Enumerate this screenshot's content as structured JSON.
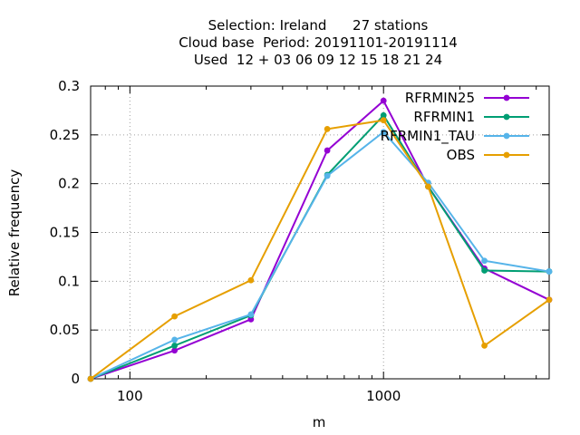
{
  "chart_data": {
    "type": "line",
    "title_lines": [
      "Selection: Ireland      27 stations",
      "Cloud base  Period: 20191101-20191114",
      "Used  12 + 03 06 09 12 15 18 21 24"
    ],
    "xlabel": "m",
    "ylabel": "Relative frequency",
    "xscale": "log",
    "xlim": [
      70,
      4500
    ],
    "ylim": [
      0,
      0.3
    ],
    "xticks": [
      100,
      1000
    ],
    "xtick_labels": [
      "100",
      "1000"
    ],
    "yticks": [
      0,
      0.05,
      0.1,
      0.15,
      0.2,
      0.25,
      0.3
    ],
    "ytick_labels": [
      "0",
      "0.05",
      "0.1",
      "0.15",
      "0.2",
      "0.25",
      "0.3"
    ],
    "grid": true,
    "legend_position": "top-right",
    "x": [
      70,
      150,
      300,
      600,
      1000,
      1500,
      2500,
      4500
    ],
    "series": [
      {
        "name": "RFRMIN25",
        "color": "#9400d3",
        "values": [
          0,
          0.029,
          0.061,
          0.234,
          0.285,
          0.197,
          0.113,
          0.081
        ]
      },
      {
        "name": "RFRMIN1",
        "color": "#009e73",
        "values": [
          0,
          0.034,
          0.065,
          0.209,
          0.27,
          0.197,
          0.111,
          0.11
        ]
      },
      {
        "name": "RFRMIN1_TAU",
        "color": "#56b4e9",
        "values": [
          0,
          0.04,
          0.066,
          0.208,
          0.253,
          0.201,
          0.121,
          0.11
        ]
      },
      {
        "name": "OBS",
        "color": "#e69f00",
        "values": [
          0,
          0.064,
          0.101,
          0.256,
          0.265,
          0.197,
          0.034,
          0.081
        ]
      }
    ]
  }
}
